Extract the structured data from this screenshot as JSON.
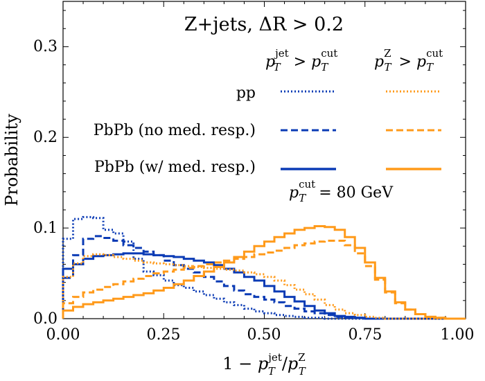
{
  "chart_data": {
    "type": "line",
    "drawstyle": "step-histogram",
    "title": "Z+jets, ΔR > 0.2",
    "xlabel": "1 − p_T^jet / p_T^Z",
    "xlabel_parts": {
      "pre": "1 − ",
      "p1": "p",
      "p1_sup": "jet",
      "p1_sub": "T",
      "slash": "/",
      "p2": "p",
      "p2_sup": "Z",
      "p2_sub": "T"
    },
    "ylabel": "Probability",
    "xlim": [
      0.0,
      1.0
    ],
    "ylim": [
      0.0,
      0.35
    ],
    "x_ticks": [
      0.0,
      0.25,
      0.5,
      0.75,
      1.0
    ],
    "x_tick_labels": [
      "0.00",
      "0.25",
      "0.50",
      "0.75",
      "1.00"
    ],
    "y_ticks": [
      0.0,
      0.1,
      0.2,
      0.3
    ],
    "y_tick_labels": [
      "0.0",
      "0.1",
      "0.2",
      "0.3"
    ],
    "bin_edges": [
      0.0,
      0.025,
      0.05,
      0.075,
      0.1,
      0.125,
      0.15,
      0.175,
      0.2,
      0.225,
      0.25,
      0.275,
      0.3,
      0.325,
      0.35,
      0.375,
      0.4,
      0.425,
      0.45,
      0.475,
      0.5,
      0.525,
      0.55,
      0.575,
      0.6,
      0.625,
      0.65,
      0.675,
      0.7,
      0.725,
      0.75,
      0.775,
      0.8,
      0.825,
      0.85,
      0.875,
      0.9,
      0.925,
      0.95,
      0.975,
      1.0
    ],
    "series": [
      {
        "name": "pp, pT^jet > pT^cut",
        "color": "#0b3bb5",
        "style": "dotted",
        "values": [
          0.088,
          0.11,
          0.112,
          0.111,
          0.098,
          0.094,
          0.085,
          0.066,
          0.052,
          0.048,
          0.042,
          0.037,
          0.034,
          0.03,
          0.026,
          0.022,
          0.018,
          0.015,
          0.011,
          0.008,
          0.006,
          0.004,
          0.003,
          0.002,
          0.001,
          0.001,
          0.0,
          0,
          0,
          0,
          0,
          0,
          0,
          0,
          0,
          0,
          0,
          0,
          0,
          0
        ]
      },
      {
        "name": "PbPb (no med. resp.), pT^jet > pT^cut",
        "color": "#0b3bb5",
        "style": "dashed",
        "values": [
          0.045,
          0.07,
          0.088,
          0.091,
          0.089,
          0.086,
          0.081,
          0.078,
          0.074,
          0.07,
          0.064,
          0.059,
          0.055,
          0.051,
          0.046,
          0.041,
          0.036,
          0.031,
          0.027,
          0.024,
          0.021,
          0.018,
          0.014,
          0.011,
          0.008,
          0.006,
          0.004,
          0.002,
          0.001,
          0.001,
          0.0,
          0,
          0,
          0,
          0,
          0,
          0,
          0,
          0,
          0
        ]
      },
      {
        "name": "PbPb (w/ med. resp.), pT^jet > pT^cut",
        "color": "#0b3bb5",
        "style": "solid",
        "values": [
          0.055,
          0.06,
          0.066,
          0.069,
          0.07,
          0.071,
          0.072,
          0.072,
          0.071,
          0.07,
          0.069,
          0.068,
          0.066,
          0.064,
          0.062,
          0.059,
          0.055,
          0.051,
          0.046,
          0.042,
          0.036,
          0.03,
          0.024,
          0.019,
          0.014,
          0.009,
          0.006,
          0.003,
          0.002,
          0.001,
          0.0,
          0,
          0,
          0,
          0,
          0,
          0,
          0,
          0,
          0
        ]
      },
      {
        "name": "pp, pT^Z > pT^cut",
        "color": "#ff9a1a",
        "style": "dotted",
        "values": [
          0.046,
          0.061,
          0.069,
          0.071,
          0.07,
          0.068,
          0.066,
          0.064,
          0.062,
          0.061,
          0.06,
          0.059,
          0.058,
          0.057,
          0.056,
          0.055,
          0.054,
          0.053,
          0.051,
          0.049,
          0.046,
          0.042,
          0.037,
          0.032,
          0.027,
          0.021,
          0.015,
          0.01,
          0.006,
          0.004,
          0.002,
          0.001,
          0.0,
          0,
          0,
          0,
          0,
          0,
          0,
          0
        ]
      },
      {
        "name": "PbPb (no med. resp.), pT^Z > pT^cut",
        "color": "#ff9a1a",
        "style": "dashed",
        "values": [
          0.017,
          0.024,
          0.029,
          0.032,
          0.035,
          0.038,
          0.041,
          0.044,
          0.047,
          0.05,
          0.052,
          0.054,
          0.056,
          0.058,
          0.06,
          0.062,
          0.064,
          0.066,
          0.068,
          0.071,
          0.073,
          0.075,
          0.078,
          0.081,
          0.083,
          0.085,
          0.086,
          0.086,
          0.081,
          0.072,
          0.058,
          0.043,
          0.029,
          0.017,
          0.01,
          0.005,
          0.002,
          0.001,
          0.0,
          0
        ]
      },
      {
        "name": "PbPb (w/ med. resp.), pT^Z > pT^cut",
        "color": "#ff9a1a",
        "style": "solid",
        "values": [
          0.009,
          0.013,
          0.016,
          0.018,
          0.02,
          0.022,
          0.024,
          0.026,
          0.028,
          0.031,
          0.034,
          0.038,
          0.042,
          0.047,
          0.052,
          0.057,
          0.062,
          0.068,
          0.074,
          0.08,
          0.085,
          0.09,
          0.094,
          0.098,
          0.1,
          0.102,
          0.101,
          0.098,
          0.09,
          0.078,
          0.062,
          0.045,
          0.03,
          0.018,
          0.01,
          0.005,
          0.002,
          0.001,
          0.0,
          0
        ]
      }
    ],
    "legend": {
      "position": "upper-right",
      "col_headers": [
        {
          "p": "p",
          "sup": "jet",
          "sub": "T",
          "gt": " > ",
          "p2": "p",
          "sup2": "cut",
          "sub2": "T"
        },
        {
          "p": "p",
          "sup": "Z",
          "sub": "T",
          "gt": " > ",
          "p2": "p",
          "sup2": "cut",
          "sub2": "T"
        }
      ],
      "row_labels": [
        "pp",
        "PbPb (no med. resp.)",
        "PbPb (w/ med. resp.)"
      ],
      "note": {
        "p": "p",
        "sup": "cut",
        "sub": "T",
        "rest": " = 80 GeV"
      }
    }
  }
}
